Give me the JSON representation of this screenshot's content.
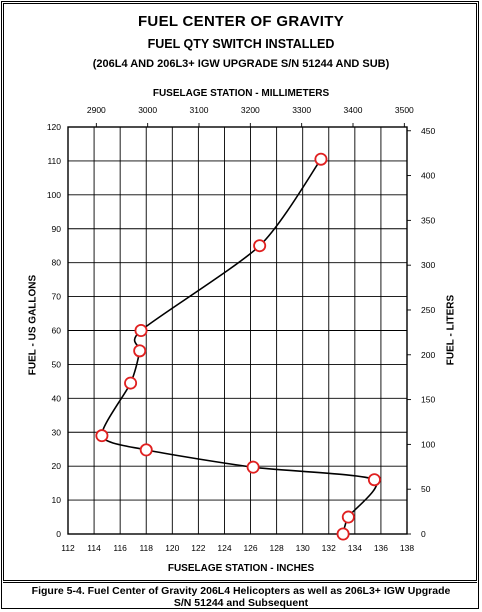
{
  "header": {
    "title": "FUEL CENTER OF GRAVITY",
    "subtitle": "FUEL QTY SWITCH INSTALLED",
    "subtitle2": "(206L4 AND 206L3+ IGW UPGRADE S/N 51244 AND SUB)"
  },
  "figure_caption": {
    "line1": "Figure 5-4.   Fuel Center of Gravity 206L4 Helicopters as well as 206L3+ IGW Upgrade",
    "line2": "S/N 51244 and Subsequent"
  },
  "chart_data": {
    "type": "line",
    "title": "FUEL CENTER OF GRAVITY",
    "xlabel": "FUSELAGE STATION - INCHES",
    "ylabel": "FUEL - US GALLONS",
    "x2label": "FUSELAGE STATION - MILLIMETERS",
    "y2label": "FUEL - LITERS",
    "xlim": [
      112,
      138
    ],
    "ylim": [
      0,
      120
    ],
    "x2lim": [
      2844.8,
      3505.2
    ],
    "y2lim": [
      0,
      454.2
    ],
    "xticks": [
      "112",
      "114",
      "116",
      "118",
      "120",
      "122",
      "124",
      "126",
      "128",
      "130",
      "132",
      "134",
      "136",
      "138"
    ],
    "yticks": [
      "0",
      "10",
      "20",
      "30",
      "40",
      "50",
      "60",
      "70",
      "80",
      "90",
      "100",
      "110",
      "120"
    ],
    "x2ticks": [
      "2900",
      "3000",
      "3100",
      "3200",
      "3300",
      "3400",
      "3500"
    ],
    "y2ticks": [
      "0",
      "50",
      "100",
      "150",
      "200",
      "250",
      "300",
      "350",
      "400",
      "450"
    ],
    "grid": true,
    "series": [
      {
        "x": [
          133.1,
          133.5,
          135.5,
          126.2,
          118.0,
          114.6,
          116.8,
          117.5,
          117.6,
          126.7,
          131.4
        ],
        "y": [
          0,
          5,
          16,
          19.7,
          24.8,
          29,
          44.5,
          54,
          60,
          85,
          110.5
        ]
      }
    ],
    "colors": {
      "line": "#000000",
      "marker": "#e02020",
      "grid": "#000000"
    }
  }
}
